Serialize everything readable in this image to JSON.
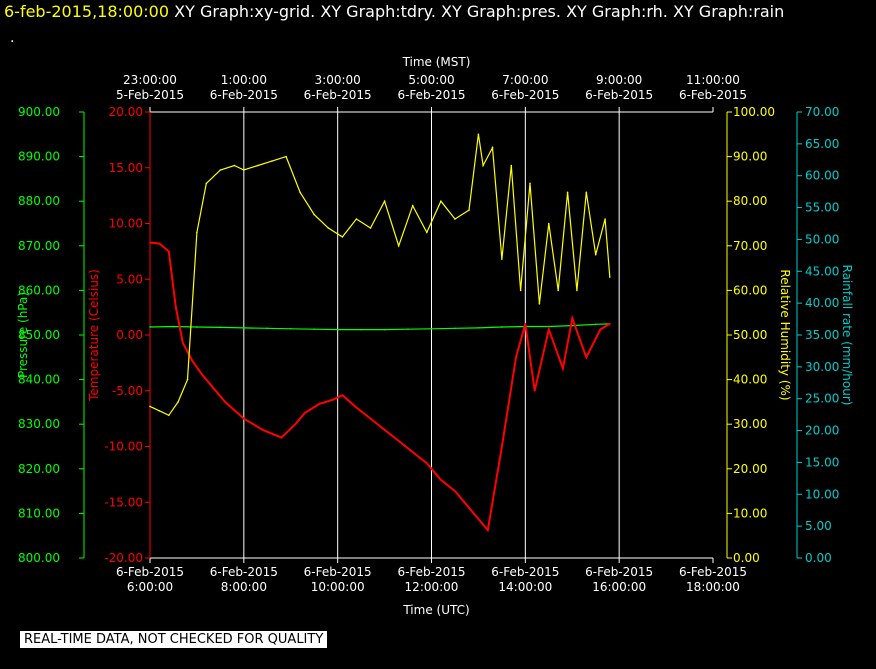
{
  "header": {
    "timestamp": "6-feb-2015,18:00:00",
    "titles": [
      "XY Graph:xy-grid.",
      "XY Graph:tdry.",
      "XY Graph:pres.",
      "XY Graph:rh.",
      "XY Graph:rain"
    ],
    "dot": "."
  },
  "footer": "REAL-TIME DATA, NOT CHECKED FOR QUALITY",
  "colors": {
    "pressure": "#00ff00",
    "temperature": "#ff0000",
    "humidity": "#ffff00",
    "rain": "#00cccc",
    "grid": "#ffffff"
  },
  "chart_data": {
    "type": "line",
    "x_top_label": "Time (MST)",
    "x_bottom_label": "Time (UTC)",
    "x_top_ticks": [
      {
        "time": "23:00:00",
        "date": "5-Feb-2015"
      },
      {
        "time": "1:00:00",
        "date": "6-Feb-2015"
      },
      {
        "time": "3:00:00",
        "date": "6-Feb-2015"
      },
      {
        "time": "5:00:00",
        "date": "6-Feb-2015"
      },
      {
        "time": "7:00:00",
        "date": "6-Feb-2015"
      },
      {
        "time": "9:00:00",
        "date": "6-Feb-2015"
      },
      {
        "time": "11:00:00",
        "date": "6-Feb-2015"
      }
    ],
    "x_bottom_ticks": [
      {
        "date": "6-Feb-2015",
        "time": "6:00:00"
      },
      {
        "date": "6-Feb-2015",
        "time": "8:00:00"
      },
      {
        "date": "6-Feb-2015",
        "time": "10:00:00"
      },
      {
        "date": "6-Feb-2015",
        "time": "12:00:00"
      },
      {
        "date": "6-Feb-2015",
        "time": "14:00:00"
      },
      {
        "date": "6-Feb-2015",
        "time": "16:00:00"
      },
      {
        "date": "6-Feb-2015",
        "time": "18:00:00"
      }
    ],
    "xlim_utc_hours": [
      6,
      18
    ],
    "axes": {
      "pressure": {
        "label": "Pressure (hPa)",
        "ylim": [
          800,
          900
        ],
        "ticks": [
          "800.00",
          "810.00",
          "820.00",
          "830.00",
          "840.00",
          "850.00",
          "860.00",
          "870.00",
          "880.00",
          "890.00",
          "900.00"
        ]
      },
      "temperature": {
        "label": "Temperature (Celsius)",
        "ylim": [
          -20,
          20
        ],
        "ticks": [
          "-20.00",
          "-15.00",
          "-10.00",
          "-5.00",
          "0.00",
          "5.00",
          "10.00",
          "15.00",
          "20.00"
        ]
      },
      "humidity": {
        "label": "Relative Humidity (%)",
        "ylim": [
          0,
          100
        ],
        "ticks": [
          "0.00",
          "10.00",
          "20.00",
          "30.00",
          "40.00",
          "50.00",
          "60.00",
          "70.00",
          "80.00",
          "90.00",
          "100.00"
        ]
      },
      "rain": {
        "label": "Rainfall rate (mm/hour)",
        "ylim": [
          0,
          70
        ],
        "ticks": [
          "0.00",
          "5.00",
          "10.00",
          "15.00",
          "20.00",
          "25.00",
          "30.00",
          "35.00",
          "40.00",
          "45.00",
          "50.00",
          "55.00",
          "60.00",
          "65.00",
          "70.00"
        ]
      }
    },
    "series": [
      {
        "key": "pressure",
        "x": [
          6.0,
          6.5,
          7.0,
          7.5,
          8.0,
          8.5,
          9.0,
          9.5,
          10.0,
          10.5,
          11.0,
          11.5,
          12.0,
          12.5,
          13.0,
          13.5,
          14.0,
          14.5,
          15.0,
          15.5,
          15.8
        ],
        "y": [
          851.8,
          851.9,
          851.8,
          851.7,
          851.6,
          851.5,
          851.4,
          851.3,
          851.2,
          851.2,
          851.2,
          851.3,
          851.4,
          851.5,
          851.6,
          851.8,
          851.9,
          851.9,
          852.1,
          852.4,
          852.5
        ]
      },
      {
        "key": "temperature",
        "x": [
          6.0,
          6.2,
          6.4,
          6.55,
          6.7,
          6.9,
          7.1,
          7.3,
          7.6,
          8.0,
          8.4,
          8.8,
          9.1,
          9.3,
          9.6,
          9.9,
          10.1,
          10.4,
          10.7,
          11.0,
          11.3,
          11.6,
          11.9,
          12.2,
          12.5,
          12.8,
          13.0,
          13.2,
          13.5,
          13.8,
          14.0,
          14.2,
          14.5,
          14.8,
          15.0,
          15.3,
          15.6,
          15.8
        ],
        "y": [
          8.3,
          8.2,
          7.5,
          2.5,
          -0.7,
          -2.3,
          -3.5,
          -4.5,
          -6.0,
          -7.5,
          -8.5,
          -9.2,
          -8.0,
          -7.0,
          -6.2,
          -5.8,
          -5.4,
          -6.5,
          -7.5,
          -8.5,
          -9.5,
          -10.5,
          -11.5,
          -13.0,
          -14.0,
          -15.5,
          -16.5,
          -17.5,
          -10.0,
          -2.0,
          1.0,
          -5.0,
          0.5,
          -3.0,
          1.5,
          -2.0,
          0.5,
          1.0
        ]
      },
      {
        "key": "humidity",
        "x": [
          6.0,
          6.2,
          6.4,
          6.6,
          6.8,
          7.0,
          7.2,
          7.5,
          7.8,
          8.0,
          8.3,
          8.6,
          8.9,
          9.2,
          9.5,
          9.8,
          10.1,
          10.4,
          10.7,
          11.0,
          11.3,
          11.6,
          11.9,
          12.2,
          12.5,
          12.8,
          13.0,
          13.1,
          13.3,
          13.5,
          13.7,
          13.9,
          14.1,
          14.3,
          14.5,
          14.7,
          14.9,
          15.1,
          15.3,
          15.5,
          15.7,
          15.8
        ],
        "y": [
          34.0,
          33.0,
          32.0,
          35.0,
          40.0,
          73.0,
          84.0,
          87.0,
          88.0,
          87.0,
          88.0,
          89.0,
          90.0,
          82.0,
          77.0,
          74.0,
          72.0,
          76.0,
          74.0,
          80.0,
          70.0,
          79.0,
          73.0,
          80.0,
          76.0,
          78.0,
          95.0,
          88.0,
          92.0,
          67.0,
          88.0,
          60.0,
          84.0,
          57.0,
          75.0,
          60.0,
          82.0,
          60.0,
          82.0,
          68.0,
          76.0,
          63.0
        ]
      }
    ]
  }
}
